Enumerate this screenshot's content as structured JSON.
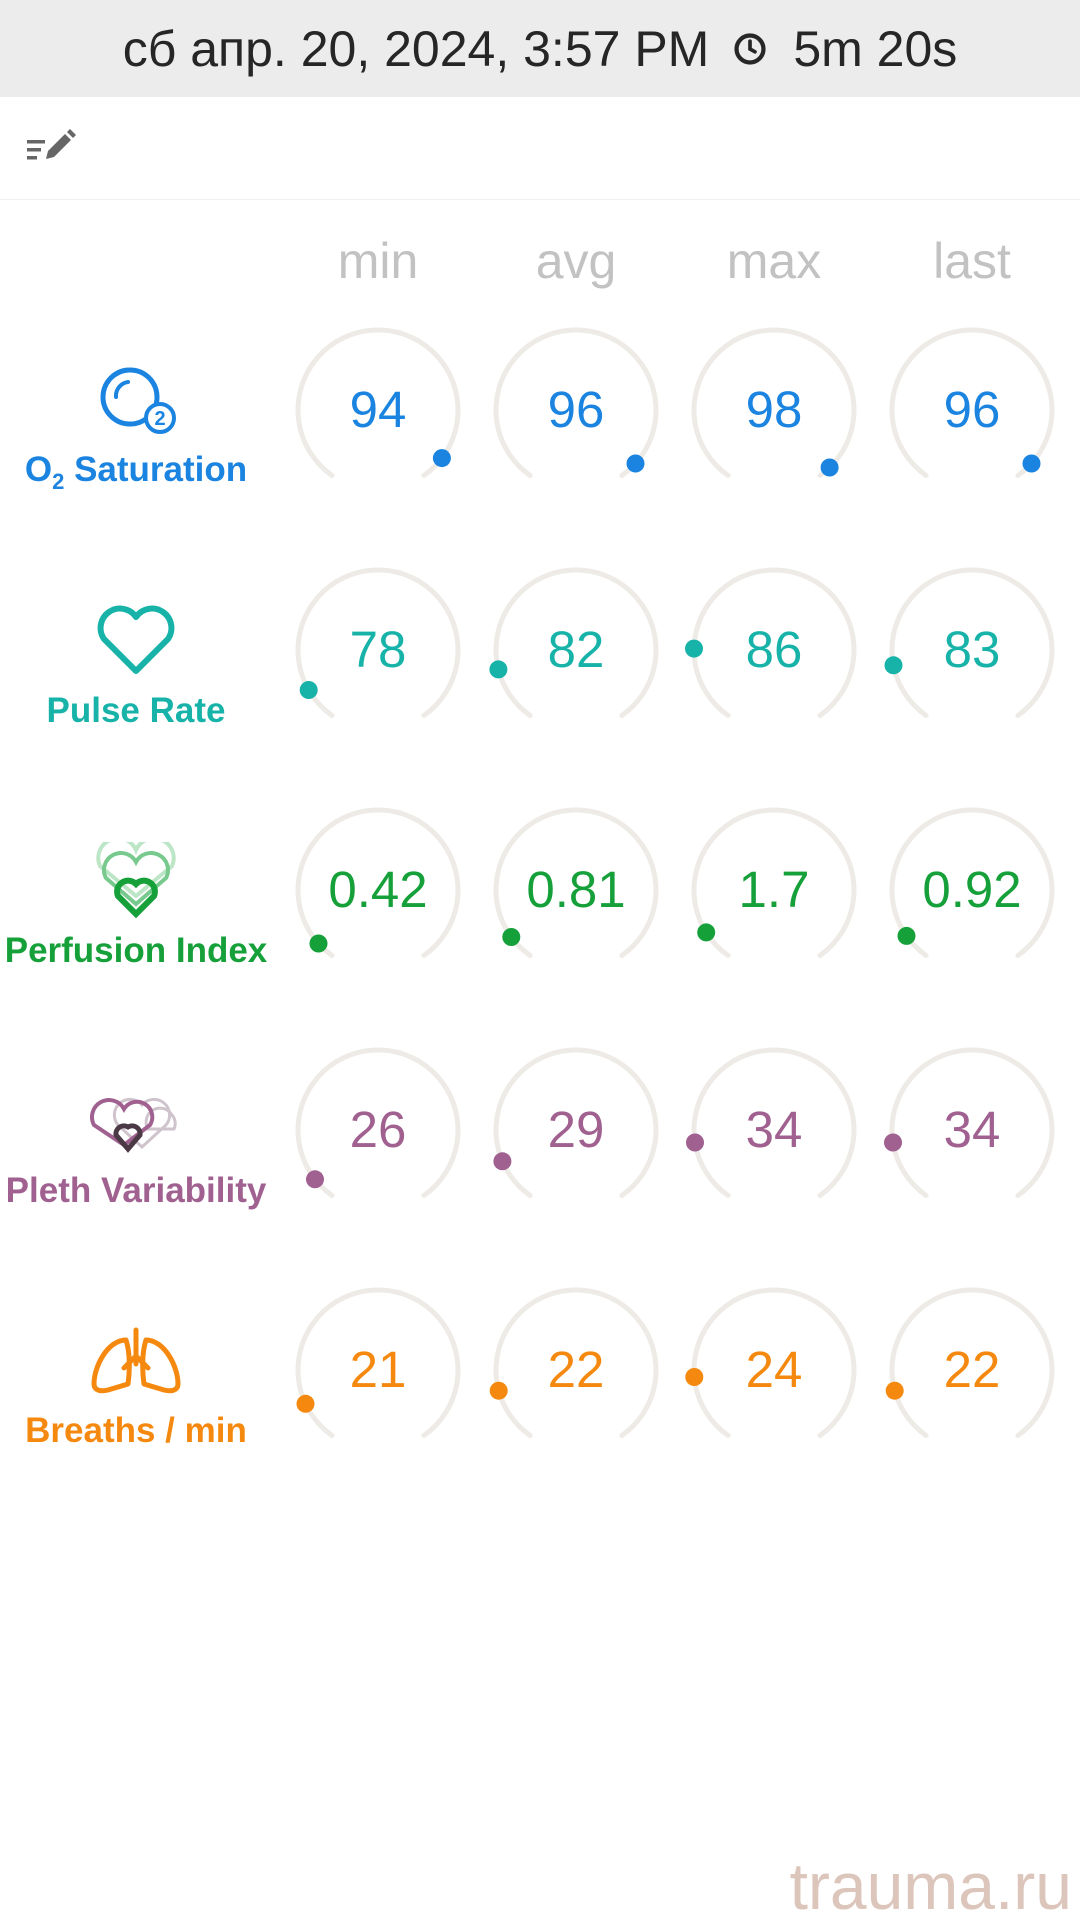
{
  "header": {
    "datetime": "сб апр. 20, 2024, 3:57 PM",
    "duration": "5m 20s",
    "clock_icon": "clock-icon"
  },
  "toolbar": {
    "edit_icon": "edit-list-icon"
  },
  "columns": [
    "min",
    "avg",
    "max",
    "last"
  ],
  "colors": {
    "o2": "#1a84e0",
    "pulse": "#17b3a9",
    "perfusion": "#16a03a",
    "pleth": "#a06090",
    "breaths": "#f5890f",
    "arc": "#eeebe6"
  },
  "metrics": [
    {
      "key": "o2",
      "label_main": "O",
      "label_sub": "2",
      "label_rest": " Saturation",
      "icon": "o2-bubble-icon",
      "values": [
        "94",
        "96",
        "98",
        "96"
      ],
      "dot_angles": [
        127,
        132,
        136,
        132
      ]
    },
    {
      "key": "pulse",
      "label": "Pulse Rate",
      "icon": "heart-icon",
      "values": [
        "78",
        "82",
        "86",
        "83"
      ],
      "dot_angles": [
        -120,
        -104,
        -89,
        -101
      ]
    },
    {
      "key": "perfusion",
      "label": "Perfusion Index",
      "icon": "perfusion-hearts-icon",
      "values": [
        "0.42",
        "0.81",
        "1.7",
        "0.92"
      ],
      "dot_angles": [
        -132,
        -126,
        -122,
        -125
      ]
    },
    {
      "key": "pleth",
      "label": "Pleth Variability",
      "icon": "pleth-hearts-icon",
      "values": [
        "26",
        "29",
        "34",
        "34"
      ],
      "dot_angles": [
        -128,
        -113,
        -99,
        -99
      ]
    },
    {
      "key": "breaths",
      "label": "Breaths / min",
      "icon": "lungs-icon",
      "values": [
        "21",
        "22",
        "24",
        "22"
      ],
      "dot_angles": [
        -115,
        -105,
        -95,
        -105
      ]
    }
  ],
  "watermark": "trauma.ru"
}
